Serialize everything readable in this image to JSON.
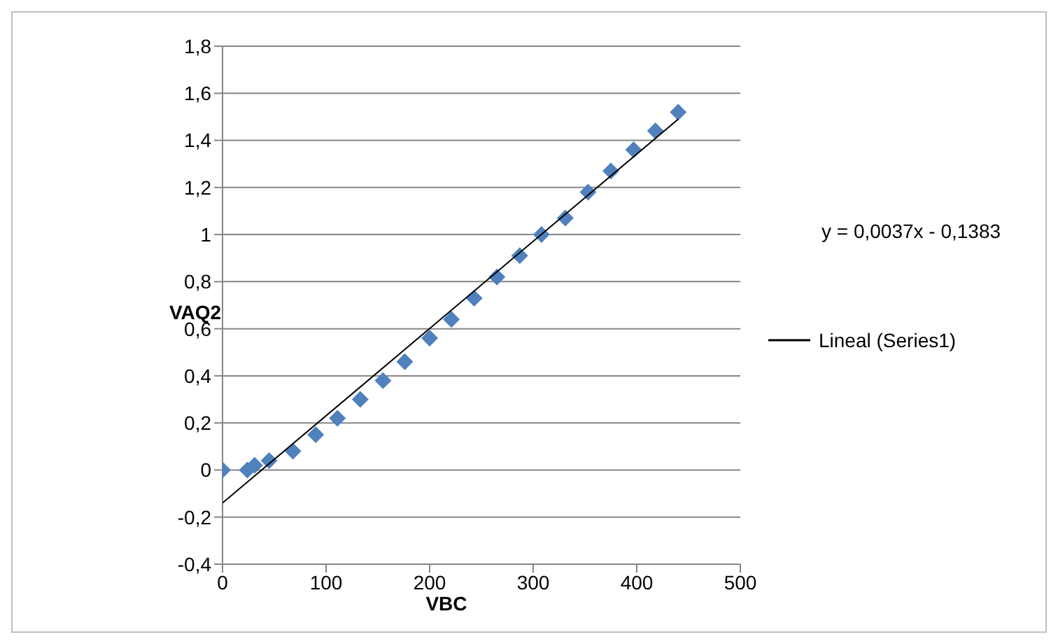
{
  "chart_data": {
    "type": "scatter",
    "xlabel": "VBC",
    "ylabel": "VAQ2",
    "grid": "y",
    "legend": "right",
    "annotations": [
      "y = 0,0037x - 0,1383"
    ],
    "xlim": [
      0,
      500
    ],
    "xticks": [
      0,
      100,
      200,
      300,
      400,
      500
    ],
    "ylim": [
      -0.4,
      1.8
    ],
    "yticks": [
      {
        "value": -0.4,
        "label": "-0,4"
      },
      {
        "value": -0.2,
        "label": "-0,2"
      },
      0,
      {
        "value": 0.2,
        "label": "0,2"
      },
      {
        "value": 0.4,
        "label": "0,4"
      },
      {
        "value": 0.6,
        "label": "0,6"
      },
      {
        "value": 0.8,
        "label": "0,8"
      },
      1,
      {
        "value": 1.2,
        "label": "1,2"
      },
      {
        "value": 1.4,
        "label": "1,4"
      },
      {
        "value": 1.6,
        "label": "1,6"
      },
      {
        "value": 1.8,
        "label": "1,8"
      }
    ],
    "series": [
      {
        "marker": "diamond",
        "color": "#4f81bd",
        "x": [
          0,
          24,
          31,
          45,
          68,
          90,
          111,
          133,
          155,
          176,
          200,
          221,
          243,
          265,
          287,
          308,
          331,
          353,
          375,
          397,
          418,
          440
        ],
        "values": [
          0,
          0,
          0.02,
          0.04,
          0.08,
          0.15,
          0.22,
          0.3,
          0.38,
          0.46,
          0.56,
          0.64,
          0.73,
          0.82,
          0.91,
          1.0,
          1.07,
          1.18,
          1.27,
          1.36,
          1.44,
          1.52
        ]
      },
      {
        "type": "line",
        "name": "Lineal (Series1)",
        "color": "#000000",
        "x": [
          0,
          440
        ],
        "values": [
          -0.14,
          1.49
        ]
      }
    ]
  }
}
